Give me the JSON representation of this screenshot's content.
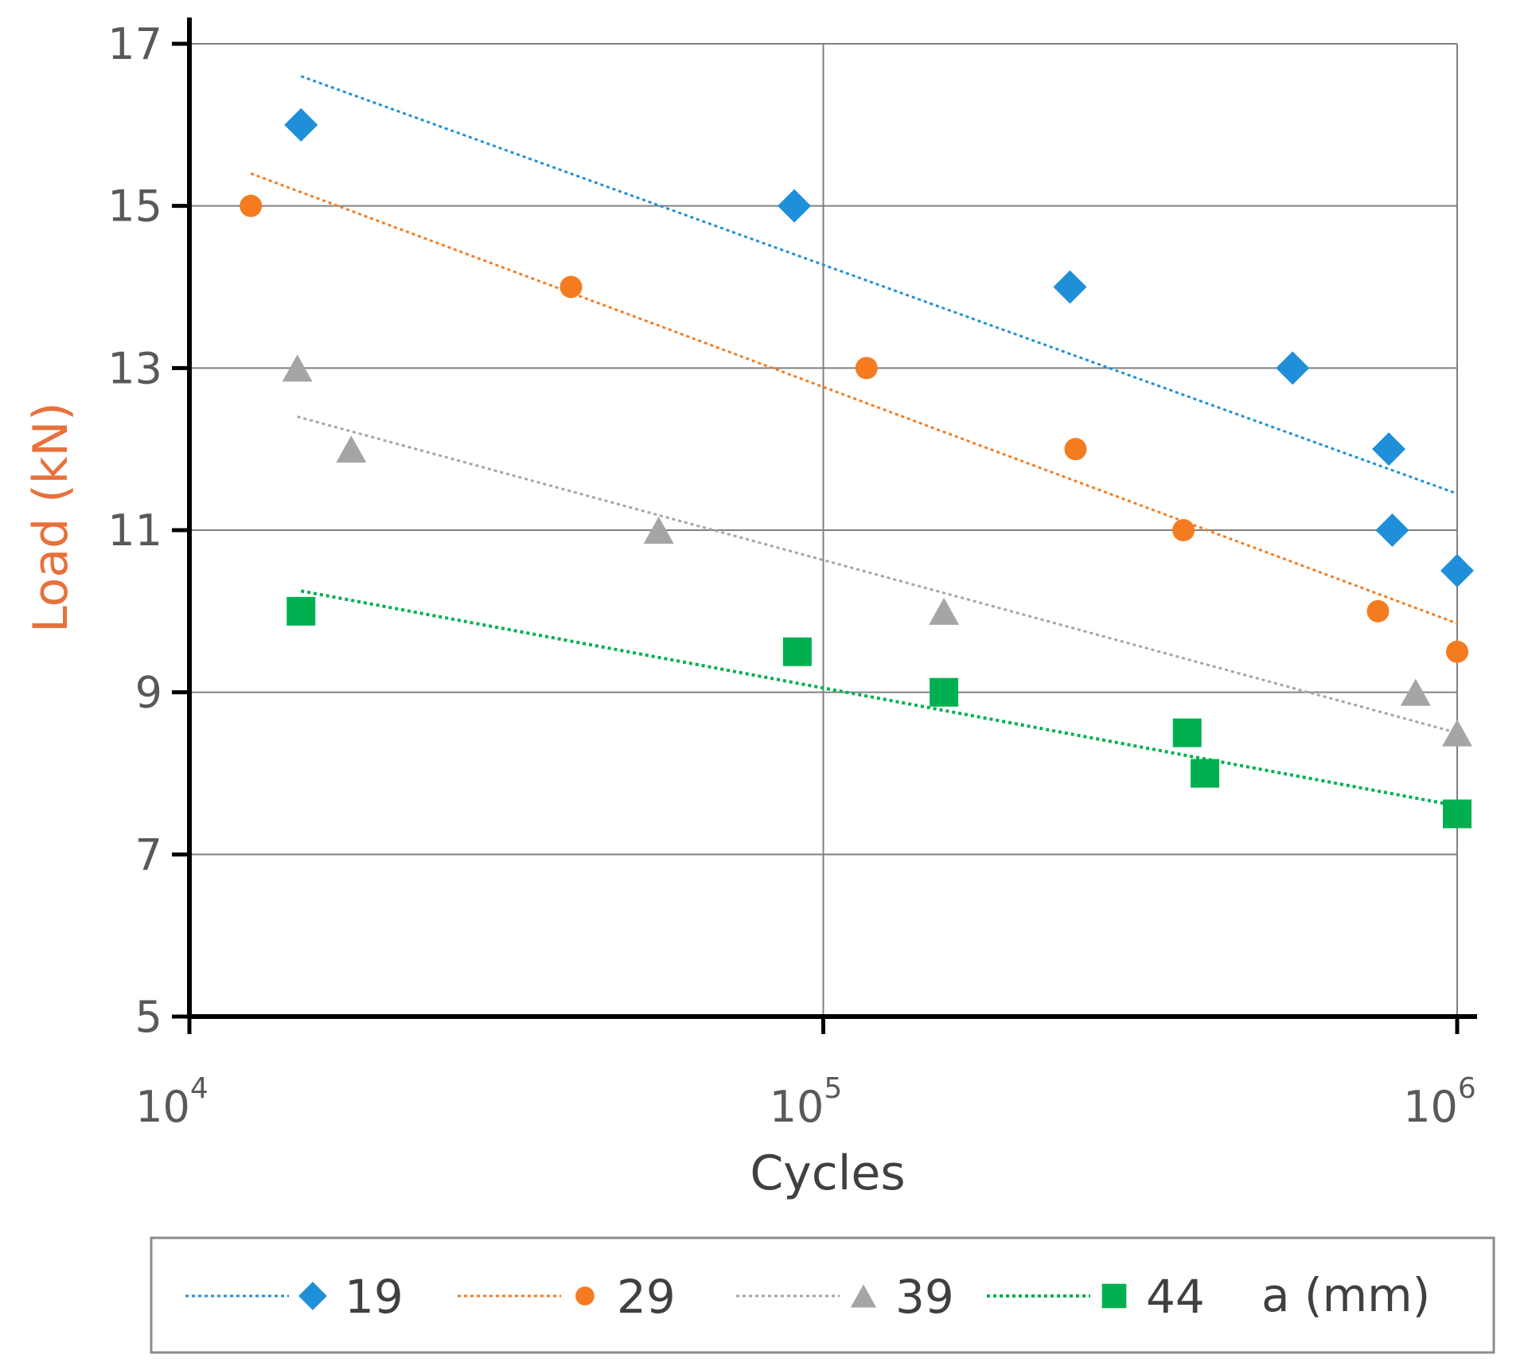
{
  "chart_data": {
    "type": "scatter",
    "title": "",
    "xlabel": "Cycles",
    "ylabel": "Load (kN)",
    "xscale": "log",
    "xlim": [
      10000,
      1000000
    ],
    "ylim": [
      5,
      17
    ],
    "grid": true,
    "x_ticks": [
      {
        "value": 10000,
        "base": "10",
        "exp": "4"
      },
      {
        "value": 100000,
        "base": "10",
        "exp": "5"
      },
      {
        "value": 1000000,
        "base": "10",
        "exp": "6"
      }
    ],
    "y_ticks": [
      {
        "value": 5,
        "label": "5"
      },
      {
        "value": 7,
        "label": "7"
      },
      {
        "value": 9,
        "label": "9"
      },
      {
        "value": 11,
        "label": "11"
      },
      {
        "value": 13,
        "label": "13"
      },
      {
        "value": 15,
        "label": "15"
      },
      {
        "value": 17,
        "label": "17"
      }
    ],
    "legend_title": "a (mm)",
    "legend_position": "bottom",
    "series": [
      {
        "name": "19",
        "marker": "diamond",
        "color": "#1f8fd9",
        "points": [
          [
            15000,
            16
          ],
          [
            90000,
            15
          ],
          [
            245000,
            14
          ],
          [
            550000,
            13
          ],
          [
            780000,
            12
          ],
          [
            790000,
            11
          ],
          [
            1000000,
            10.5
          ]
        ],
        "trend": [
          [
            15000,
            16.6
          ],
          [
            1000000,
            11.45
          ]
        ]
      },
      {
        "name": "29",
        "marker": "circle",
        "color": "#f47b20",
        "points": [
          [
            12500,
            15
          ],
          [
            40000,
            14
          ],
          [
            117000,
            13
          ],
          [
            250000,
            12
          ],
          [
            370000,
            11
          ],
          [
            750000,
            10
          ],
          [
            1000000,
            9.5
          ]
        ],
        "trend": [
          [
            12500,
            15.4
          ],
          [
            1000000,
            9.85
          ]
        ]
      },
      {
        "name": "39",
        "marker": "triangle",
        "color": "#a5a5a5",
        "points": [
          [
            14800,
            13
          ],
          [
            18000,
            12
          ],
          [
            55000,
            11
          ],
          [
            155000,
            10
          ],
          [
            860000,
            9
          ],
          [
            1000000,
            8.5
          ]
        ],
        "trend": [
          [
            14800,
            12.4
          ],
          [
            1000000,
            8.5
          ]
        ]
      },
      {
        "name": "44",
        "marker": "square",
        "color": "#00b050",
        "points": [
          [
            15000,
            10
          ],
          [
            91000,
            9.5
          ],
          [
            155000,
            9
          ],
          [
            375000,
            8.5
          ],
          [
            400000,
            8
          ],
          [
            1000000,
            7.5
          ]
        ],
        "trend": [
          [
            15000,
            10.25
          ],
          [
            1000000,
            7.6
          ]
        ]
      }
    ]
  }
}
